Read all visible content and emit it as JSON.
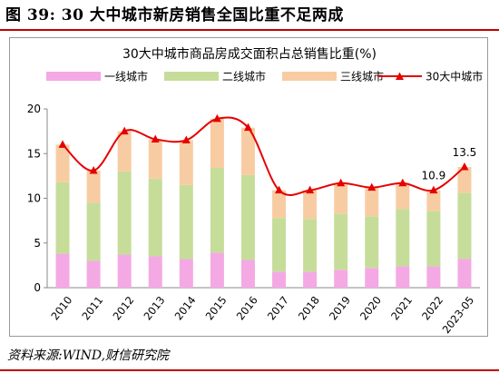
{
  "figure": {
    "title": "图 39:  30 大中城市新房销售全国比重不足两成",
    "source": "资料来源:WIND,财信研究院"
  },
  "colors": {
    "accent_rule": "#c00000",
    "tier1": "#f4a9e4",
    "tier2": "#c6dd9a",
    "tier3": "#f8cca3",
    "line": "#e60000"
  },
  "chart_data": {
    "type": "bar",
    "stacked": true,
    "title": "30大中城市商品房成交面积占总销售比重(%)",
    "categories": [
      "2010",
      "2011",
      "2012",
      "2013",
      "2014",
      "2015",
      "2016",
      "2017",
      "2018",
      "2019",
      "2020",
      "2021",
      "2022",
      "2023-05"
    ],
    "series": [
      {
        "name": "一线城市",
        "type": "bar",
        "values": [
          3.8,
          3.0,
          3.7,
          3.5,
          3.2,
          3.9,
          3.1,
          1.8,
          1.8,
          2.0,
          2.2,
          2.4,
          2.4,
          3.2
        ]
      },
      {
        "name": "二线城市",
        "type": "bar",
        "values": [
          8.0,
          6.5,
          9.3,
          8.7,
          8.3,
          9.5,
          9.5,
          6.0,
          5.9,
          6.3,
          5.8,
          6.4,
          6.2,
          7.4
        ]
      },
      {
        "name": "三线城市",
        "type": "bar",
        "values": [
          4.2,
          3.6,
          4.5,
          4.4,
          5.0,
          5.5,
          5.3,
          3.1,
          3.2,
          3.4,
          3.2,
          2.9,
          2.3,
          2.9
        ]
      },
      {
        "name": "30大中城市",
        "type": "line",
        "marker": "triangle",
        "values": [
          16.0,
          13.1,
          17.5,
          16.6,
          16.5,
          18.9,
          17.9,
          10.9,
          10.9,
          11.7,
          11.2,
          11.7,
          10.9,
          13.5
        ]
      }
    ],
    "data_labels": [
      {
        "series": "30大中城市",
        "category": "2022",
        "text": "10.9"
      },
      {
        "series": "30大中城市",
        "category": "2023-05",
        "text": "13.5"
      }
    ],
    "ylim": [
      0,
      20
    ],
    "yticks": [
      "0",
      "5",
      "10",
      "15",
      "20"
    ],
    "xlabel": "",
    "ylabel": "",
    "grid": false,
    "legend_position": "top",
    "x_tick_rotation": "diagonal"
  }
}
